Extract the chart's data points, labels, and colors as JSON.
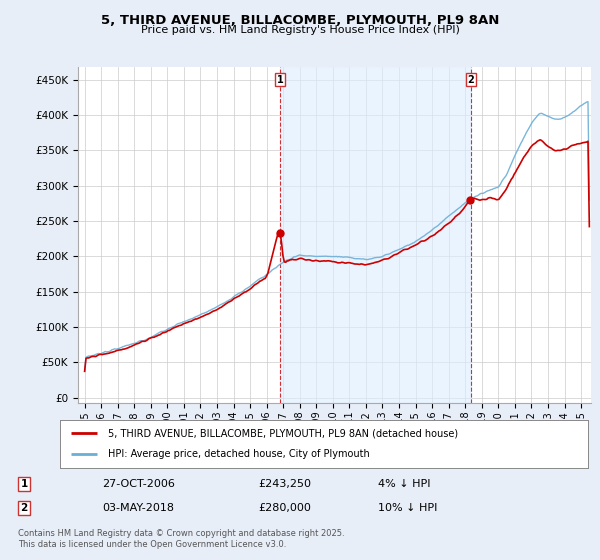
{
  "title": "5, THIRD AVENUE, BILLACOMBE, PLYMOUTH, PL9 8AN",
  "subtitle": "Price paid vs. HM Land Registry's House Price Index (HPI)",
  "yticks": [
    0,
    50000,
    100000,
    150000,
    200000,
    250000,
    300000,
    350000,
    400000,
    450000
  ],
  "ytick_labels": [
    "£0",
    "£50K",
    "£100K",
    "£150K",
    "£200K",
    "£250K",
    "£300K",
    "£350K",
    "£400K",
    "£450K"
  ],
  "ylim": [
    -8000,
    468000
  ],
  "xlim_start": 1994.6,
  "xlim_end": 2025.6,
  "xticks": [
    1995,
    1996,
    1997,
    1998,
    1999,
    2000,
    2001,
    2002,
    2003,
    2004,
    2005,
    2006,
    2007,
    2008,
    2009,
    2010,
    2011,
    2012,
    2013,
    2014,
    2015,
    2016,
    2017,
    2018,
    2019,
    2020,
    2021,
    2022,
    2023,
    2024,
    2025
  ],
  "hpi_color": "#6baed6",
  "hpi_fill_color": "#d6e8f5",
  "price_color": "#cc0000",
  "marker1_x": 2006.82,
  "marker1_y": 243250,
  "marker2_x": 2018.33,
  "marker2_y": 280000,
  "shade_color": "#ddeeff",
  "legend1": "5, THIRD AVENUE, BILLACOMBE, PLYMOUTH, PL9 8AN (detached house)",
  "legend2": "HPI: Average price, detached house, City of Plymouth",
  "sale1_date": "27-OCT-2006",
  "sale1_price": "£243,250",
  "sale1_hpi": "4% ↓ HPI",
  "sale2_date": "03-MAY-2018",
  "sale2_price": "£280,000",
  "sale2_hpi": "10% ↓ HPI",
  "footer": "Contains HM Land Registry data © Crown copyright and database right 2025.\nThis data is licensed under the Open Government Licence v3.0.",
  "bg_color": "#e8eef8",
  "plot_bg_color": "#ffffff",
  "grid_color": "#cccccc",
  "legend_box_color": "#f0f0f0"
}
